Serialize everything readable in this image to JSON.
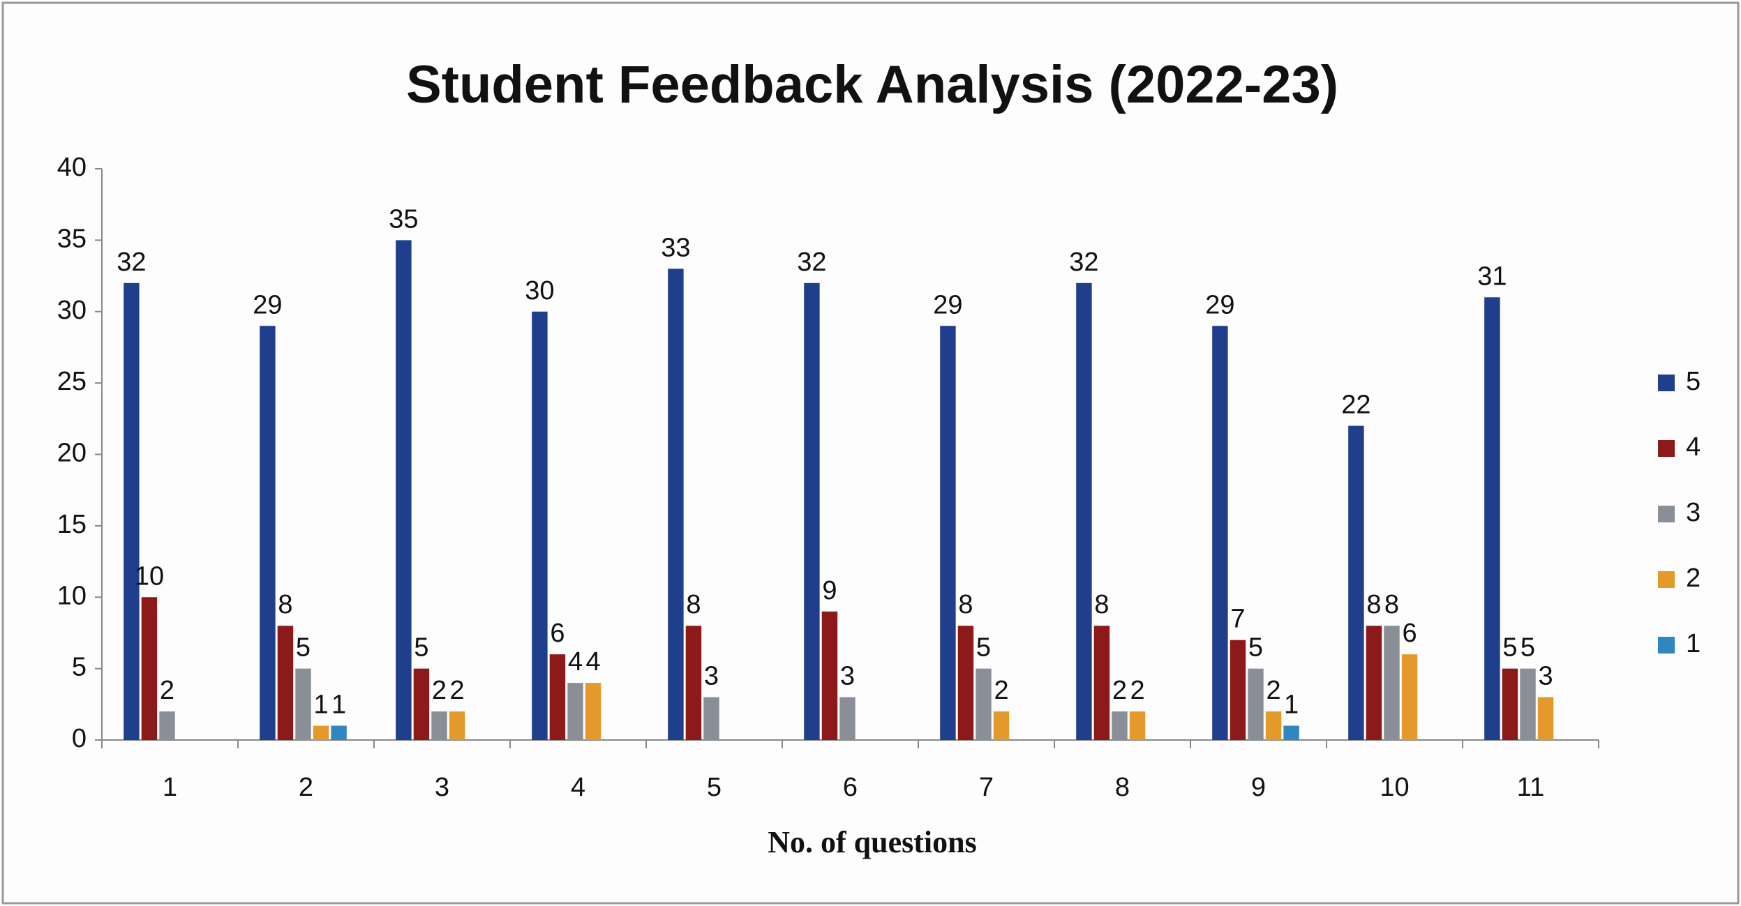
{
  "chart_data": {
    "type": "bar",
    "title": "Student Feedback Analysis (2022-23)",
    "x_label": "No. of questions",
    "categories": [
      "1",
      "2",
      "3",
      "4",
      "5",
      "6",
      "7",
      "8",
      "9",
      "10",
      "11"
    ],
    "series": [
      {
        "name": "5",
        "color": "#1f3e8c",
        "values": [
          32,
          29,
          35,
          30,
          33,
          32,
          29,
          32,
          29,
          22,
          31
        ]
      },
      {
        "name": "4",
        "color": "#8c1a1a",
        "values": [
          10,
          8,
          5,
          6,
          8,
          9,
          8,
          8,
          7,
          8,
          5
        ]
      },
      {
        "name": "3",
        "color": "#8a8f97",
        "values": [
          2,
          5,
          2,
          4,
          3,
          3,
          5,
          2,
          5,
          8,
          5
        ]
      },
      {
        "name": "2",
        "color": "#e39a2b",
        "values": [
          null,
          1,
          2,
          4,
          null,
          null,
          2,
          2,
          2,
          6,
          3
        ]
      },
      {
        "name": "1",
        "color": "#2f86c0",
        "values": [
          null,
          1,
          null,
          null,
          null,
          null,
          null,
          null,
          1,
          null,
          null
        ]
      }
    ],
    "ylim": [
      0,
      40
    ],
    "yticks": [
      0,
      5,
      10,
      15,
      20,
      25,
      30,
      35,
      40
    ],
    "grid": false,
    "legend": "right"
  }
}
